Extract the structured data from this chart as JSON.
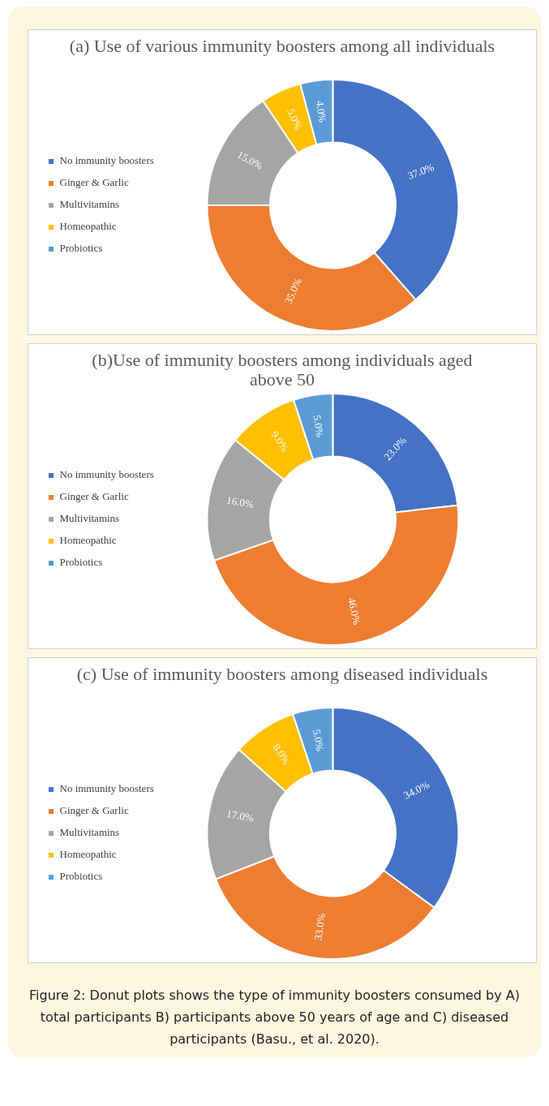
{
  "chart_data": [
    {
      "type": "donut",
      "title": "(a) Use of various immunity boosters among all individuals",
      "categories": [
        "No immunity boosters",
        "Ginger & Garlic",
        "Multivitamins",
        "Homeopathic",
        "Probiotics"
      ],
      "values": [
        37,
        35,
        15,
        5,
        4
      ],
      "colors": [
        "#4472c4",
        "#ed7d31",
        "#a5a5a5",
        "#ffc000",
        "#5b9bd5"
      ],
      "value_labels": [
        "37.0%",
        "35.0%",
        "15.0%",
        "5.0%",
        "4.0%"
      ],
      "legend": "left"
    },
    {
      "type": "donut",
      "title": "(b)Use of immunity boosters among individuals aged above 50",
      "categories": [
        "No immunity boosters",
        "Ginger & Garlic",
        "Multivitamins",
        "Homeopathic",
        "Probiotics"
      ],
      "values": [
        23,
        46,
        16,
        9,
        5
      ],
      "colors": [
        "#4472c4",
        "#ed7d31",
        "#a5a5a5",
        "#ffc000",
        "#5b9bd5"
      ],
      "value_labels": [
        "23.0%",
        "46.0%",
        "16.0%",
        "9.0%",
        "5.0%"
      ],
      "legend": "left"
    },
    {
      "type": "donut",
      "title": "(c) Use of immunity boosters among diseased individuals",
      "categories": [
        "No immunity boosters",
        "Ginger & Garlic",
        "Multivitamins",
        "Homeopathic",
        "Probiotics"
      ],
      "values": [
        34,
        33,
        17,
        8,
        5
      ],
      "colors": [
        "#4472c4",
        "#ed7d31",
        "#a5a5a5",
        "#ffc000",
        "#5b9bd5"
      ],
      "value_labels": [
        "34.0%",
        "33.0%",
        "17.0%",
        "8.0%",
        "5.0%"
      ],
      "legend": "left",
      "annotations": [
        "Figure 2: Donut plots shows the type of immunity boosters consumed by A) total participants B) participants above 50 years of age and C) diseased participants (Basu., et al. 2020)."
      ]
    }
  ]
}
